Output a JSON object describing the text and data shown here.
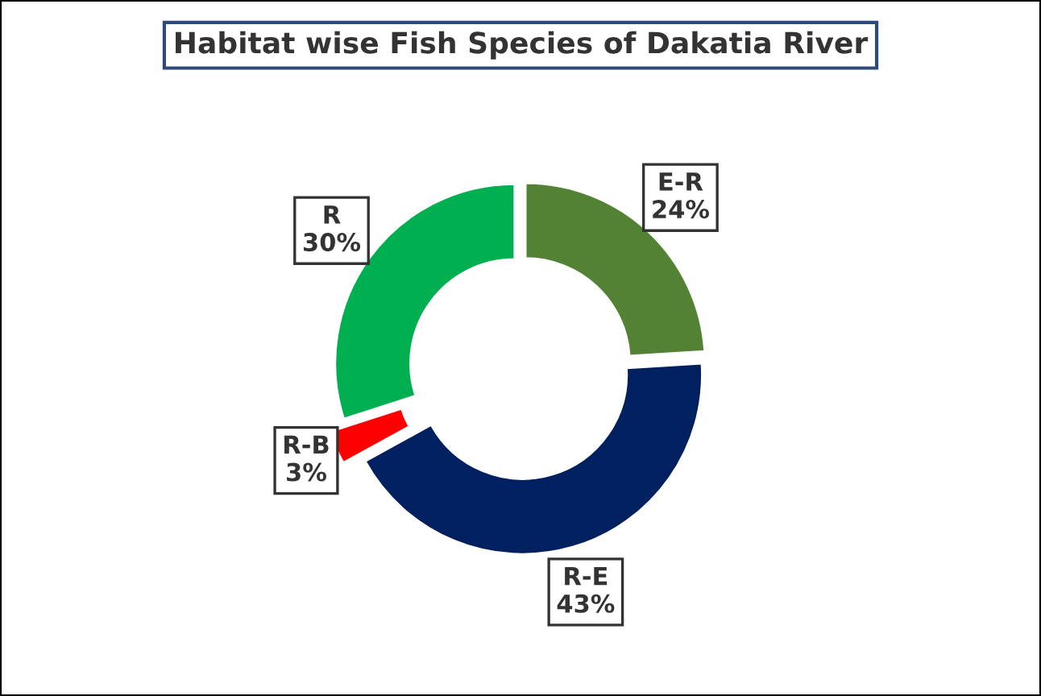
{
  "chart_data": {
    "type": "donut",
    "title": "Habitat wise Fish Species of Dakatia River",
    "categories": [
      "E-R",
      "R-E",
      "R-B",
      "R"
    ],
    "values": [
      24,
      43,
      3,
      30
    ],
    "colors": [
      "#548235",
      "#002060",
      "#ff0000",
      "#00b050"
    ],
    "value_labels": [
      "24%",
      "43%",
      "3%",
      "30%"
    ],
    "legend": false
  }
}
